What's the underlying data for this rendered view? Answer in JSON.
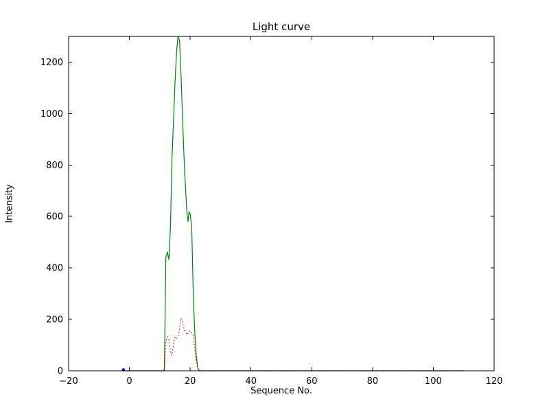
{
  "figure": {
    "background": "#ffffff",
    "axes_color": "#000000"
  },
  "chart_data": {
    "type": "line",
    "title": "Light curve",
    "xlabel": "Sequence No.",
    "ylabel": "Intensity",
    "xlim": [
      -20,
      120
    ],
    "ylim": [
      0,
      1300
    ],
    "xticks": [
      -20,
      0,
      20,
      40,
      60,
      80,
      100,
      120
    ],
    "yticks": [
      0,
      200,
      400,
      600,
      800,
      1000,
      1200
    ],
    "grid": false,
    "legend": "none",
    "series": [
      {
        "name": "light-curve-main",
        "color": "#008000",
        "style": "solid",
        "points": [
          [
            -2,
            0
          ],
          [
            0,
            0
          ],
          [
            2,
            0
          ],
          [
            4,
            0
          ],
          [
            6,
            0
          ],
          [
            8,
            0
          ],
          [
            10,
            0
          ],
          [
            11,
            0
          ],
          [
            11.5,
            3
          ],
          [
            12,
            440
          ],
          [
            12.5,
            462
          ],
          [
            13,
            432
          ],
          [
            13.5,
            560
          ],
          [
            14,
            820
          ],
          [
            15,
            1120
          ],
          [
            15.5,
            1235
          ],
          [
            16,
            1300
          ],
          [
            16.5,
            1285
          ],
          [
            17,
            1140
          ],
          [
            17.5,
            980
          ],
          [
            18,
            820
          ],
          [
            18.5,
            700
          ],
          [
            19,
            605
          ],
          [
            19.3,
            580
          ],
          [
            19.6,
            618
          ],
          [
            20,
            610
          ],
          [
            20.5,
            555
          ],
          [
            21,
            300
          ],
          [
            21.5,
            150
          ],
          [
            22,
            60
          ],
          [
            22.5,
            12
          ],
          [
            23,
            0
          ],
          [
            30,
            0
          ],
          [
            40,
            0
          ],
          [
            50,
            0
          ],
          [
            60,
            0
          ],
          [
            70,
            0
          ],
          [
            80,
            0
          ],
          [
            90,
            0
          ],
          [
            100,
            0
          ],
          [
            110,
            0
          ]
        ]
      },
      {
        "name": "light-curve-background",
        "color": "#cc0000",
        "style": "dotted",
        "points": [
          [
            -2,
            0
          ],
          [
            0,
            0
          ],
          [
            5,
            0
          ],
          [
            10,
            0
          ],
          [
            11,
            0
          ],
          [
            11.5,
            5
          ],
          [
            12,
            115
          ],
          [
            12.5,
            132
          ],
          [
            13,
            120
          ],
          [
            13.5,
            72
          ],
          [
            14,
            60
          ],
          [
            14.5,
            108
          ],
          [
            15,
            130
          ],
          [
            15.5,
            124
          ],
          [
            16,
            136
          ],
          [
            16.5,
            162
          ],
          [
            17,
            205
          ],
          [
            17.5,
            186
          ],
          [
            18,
            162
          ],
          [
            18.5,
            150
          ],
          [
            19,
            140
          ],
          [
            19.5,
            150
          ],
          [
            20,
            156
          ],
          [
            20.5,
            146
          ],
          [
            21,
            140
          ],
          [
            21.5,
            92
          ],
          [
            22,
            34
          ],
          [
            22.5,
            8
          ],
          [
            23,
            0
          ],
          [
            30,
            0
          ],
          [
            40,
            0
          ],
          [
            60,
            0
          ],
          [
            80,
            0
          ],
          [
            100,
            0
          ],
          [
            110,
            0
          ]
        ]
      },
      {
        "name": "reference-point",
        "color": "#0000ff",
        "style": "marker",
        "points": [
          [
            -2,
            4
          ]
        ]
      }
    ]
  }
}
